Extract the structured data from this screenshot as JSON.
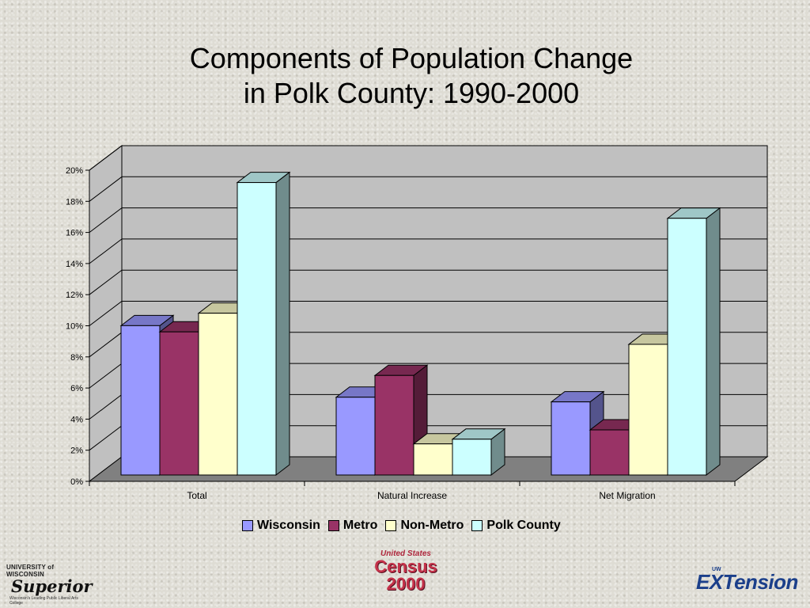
{
  "slide": {
    "title_line1": "Components of Population Change",
    "title_line2": "in Polk County: 1990-2000"
  },
  "logos": {
    "superior_line1": "UNIVERSITY of WISCONSIN",
    "superior_line2": "Superior",
    "superior_line3": "Wisconsin's Leading Public Liberal Arts College",
    "census_line1": "United States",
    "census_line2": "Census",
    "census_line3": "2000",
    "extension_line1": "UW",
    "extension_line2": "EXTension"
  },
  "chart_data": {
    "type": "bar",
    "style": "3d-clustered-column",
    "title": "Components of Population Change in Polk County: 1990-2000",
    "xlabel": "",
    "ylabel": "",
    "categories": [
      "Total",
      "Natural Increase",
      "Net Migration"
    ],
    "ylim": [
      0,
      20
    ],
    "yticks": [
      0,
      2,
      4,
      6,
      8,
      10,
      12,
      14,
      16,
      18,
      20
    ],
    "ytick_labels": [
      "0%",
      "2%",
      "4%",
      "6%",
      "8%",
      "10%",
      "12%",
      "14%",
      "16%",
      "18%",
      "20%"
    ],
    "unit": "%",
    "grid": true,
    "legend_position": "bottom",
    "series": [
      {
        "name": "Wisconsin",
        "color": "#9999ff",
        "values": [
          9.6,
          5.0,
          4.7
        ]
      },
      {
        "name": "Metro",
        "color": "#993366",
        "values": [
          9.2,
          6.4,
          2.9
        ]
      },
      {
        "name": "Non-Metro",
        "color": "#ffffcc",
        "values": [
          10.4,
          2.0,
          8.4
        ]
      },
      {
        "name": "Polk County",
        "color": "#ccffff",
        "values": [
          18.8,
          2.3,
          16.5
        ]
      }
    ],
    "colors": {
      "back_wall": "#c0c0c0",
      "floor": "#808080",
      "gridline": "#000000"
    }
  }
}
